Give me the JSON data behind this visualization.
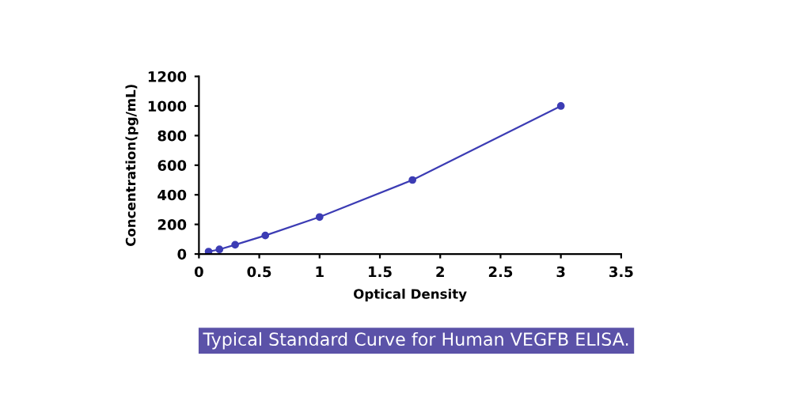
{
  "chart_data": {
    "type": "line",
    "xlabel": "Optical Density",
    "ylabel": "Concentration(pg/mL)",
    "annotations": [
      "Typical Standard Curve for Human VEGFB ELISA."
    ],
    "x": [
      0.08,
      0.17,
      0.3,
      0.55,
      1.0,
      1.77,
      3.0
    ],
    "series": [
      {
        "color": "#3c3cb4",
        "values": [
          16,
          31,
          62,
          125,
          250,
          500,
          1000
        ]
      }
    ],
    "xlim": [
      0,
      3.5
    ],
    "xticks": [
      0,
      0.5,
      1,
      1.5,
      2,
      2.5,
      3,
      3.5
    ],
    "ylim": [
      0,
      1200
    ],
    "yticks": [
      0,
      200,
      400,
      600,
      800,
      1000,
      1200
    ],
    "marker": "circle",
    "line_style": "solid",
    "grid": false,
    "legend": false
  }
}
